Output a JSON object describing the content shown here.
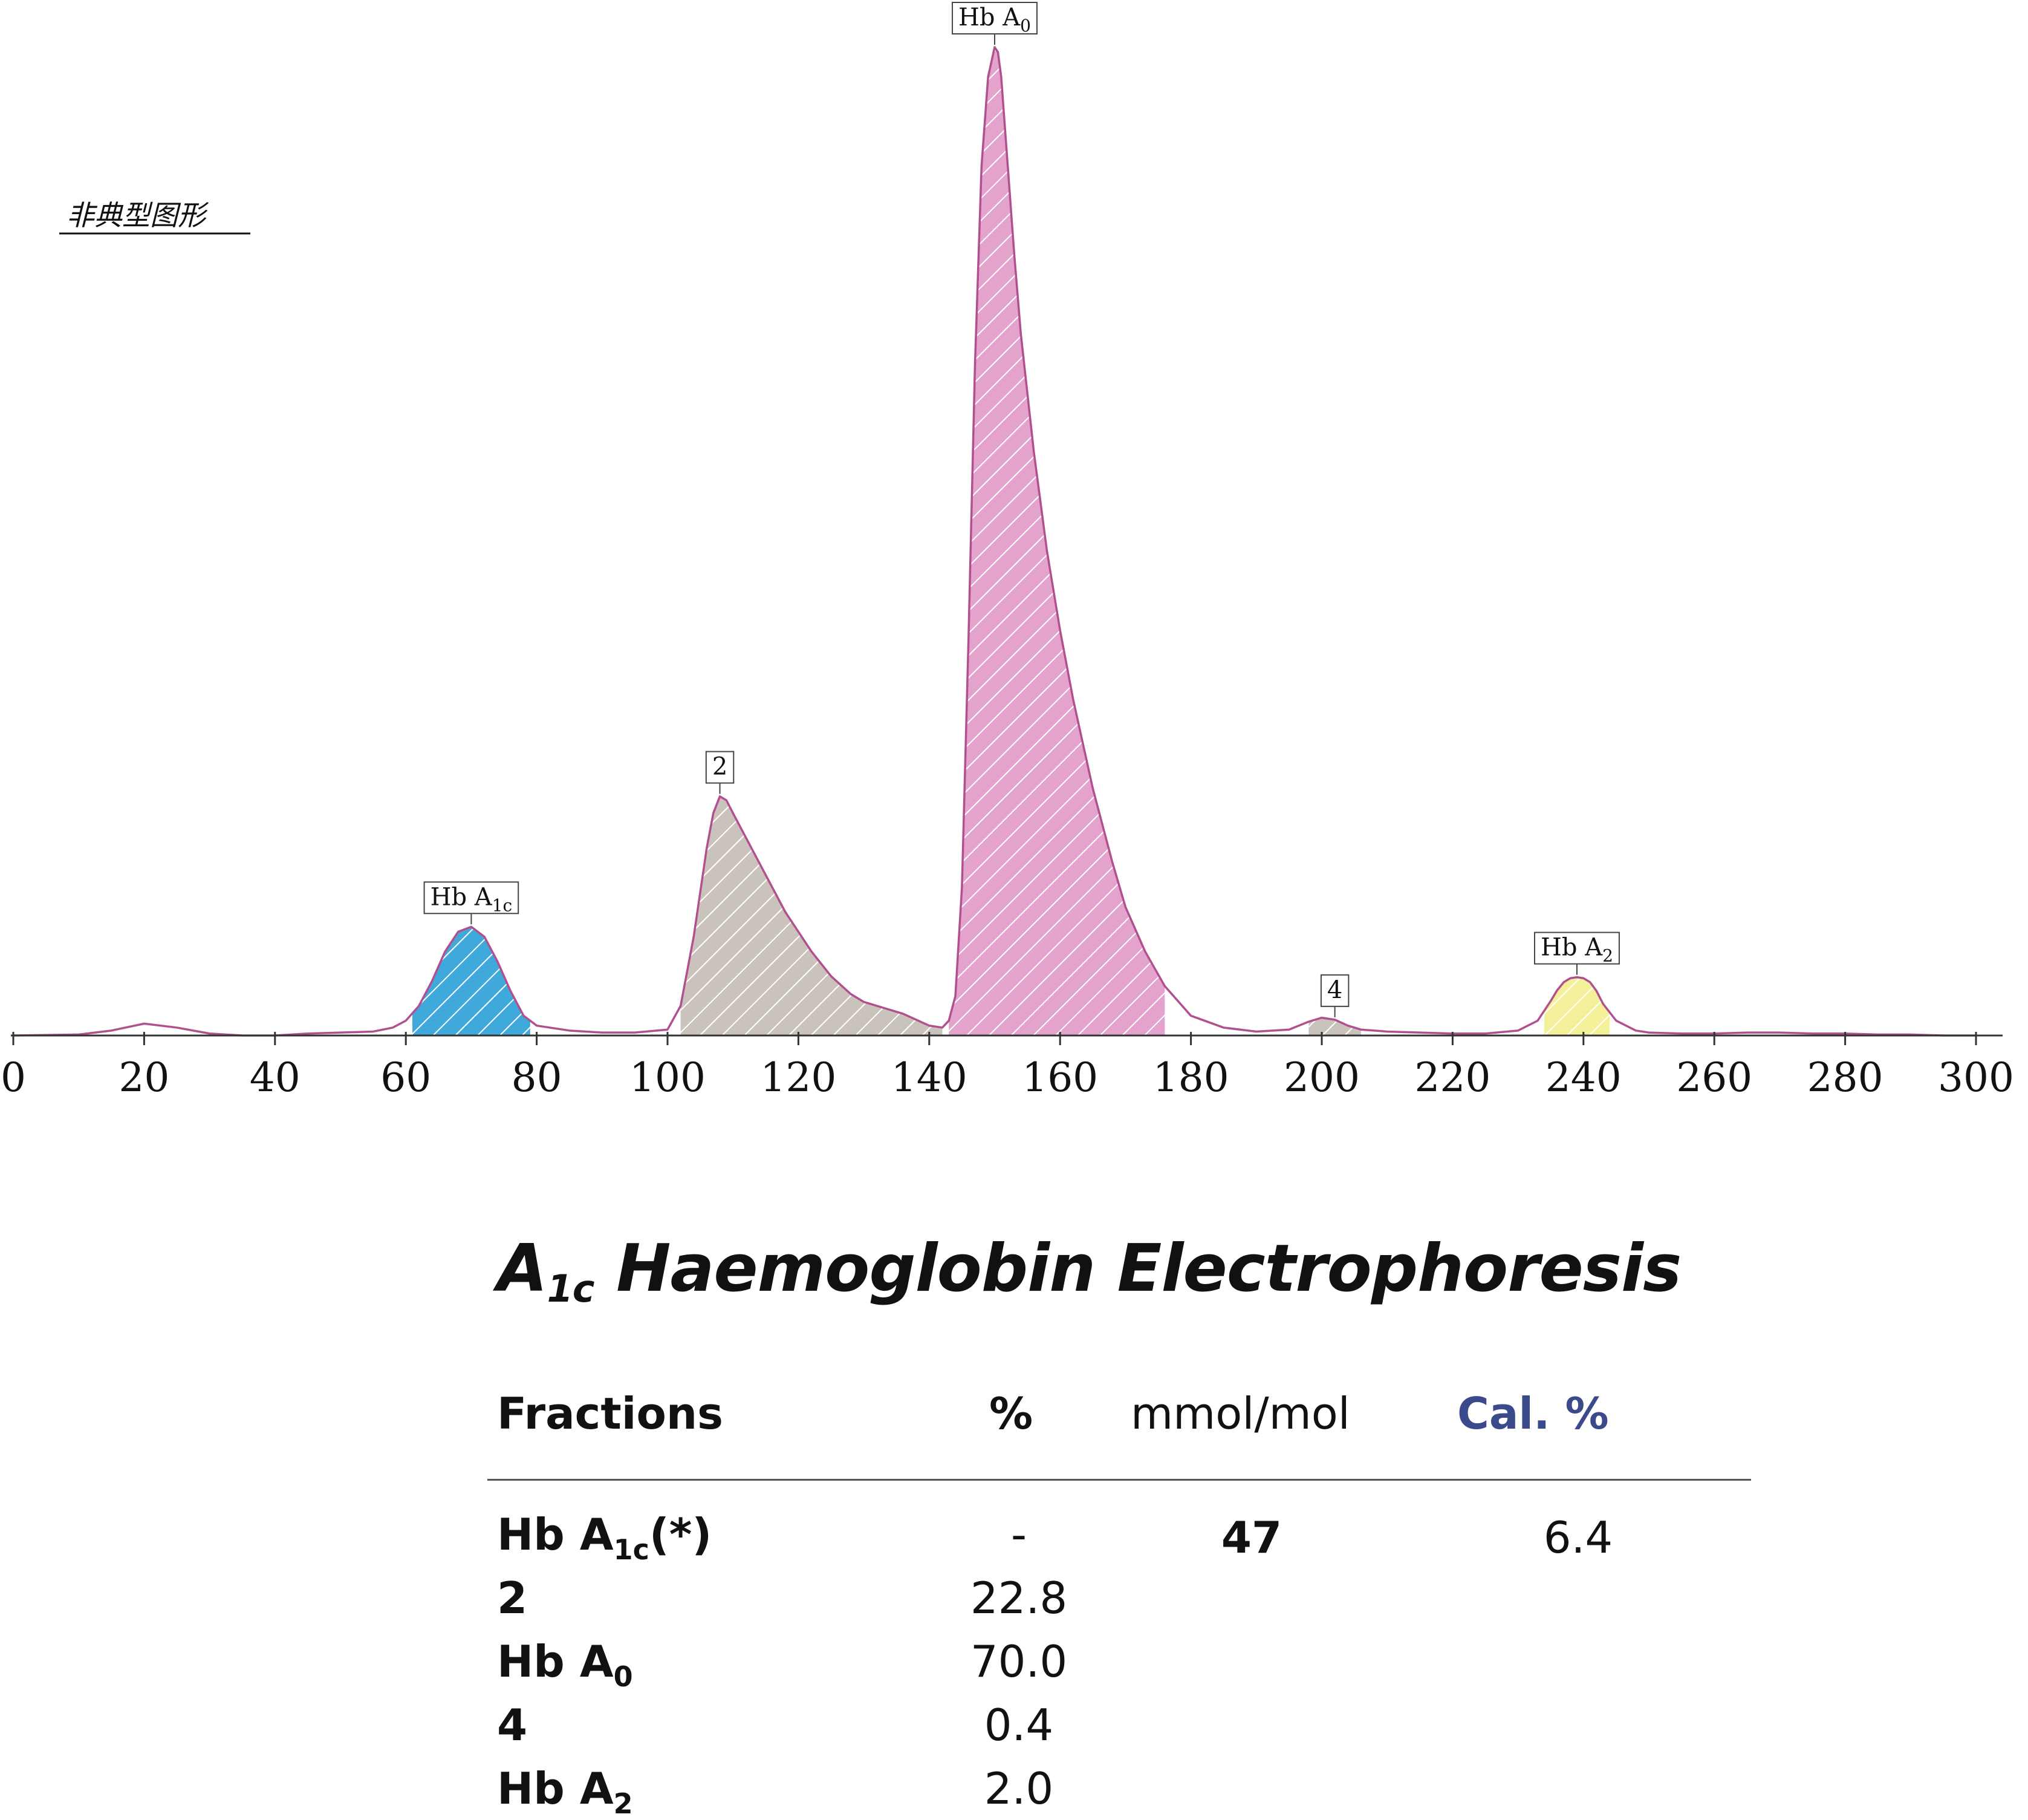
{
  "note": "非典型图形",
  "chart_data": {
    "type": "area",
    "x_ticks": [
      0,
      20,
      40,
      60,
      80,
      100,
      120,
      140,
      160,
      180,
      200,
      220,
      240,
      260,
      280,
      300
    ],
    "xlim": [
      0,
      300
    ],
    "grid": false,
    "curve": {
      "x": [
        0,
        10,
        15,
        20,
        25,
        30,
        35,
        40,
        45,
        50,
        55,
        58,
        60,
        62,
        64,
        66,
        68,
        70,
        72,
        74,
        76,
        78,
        80,
        85,
        90,
        95,
        100,
        102,
        104,
        106,
        107,
        108,
        109,
        110,
        112,
        114,
        116,
        118,
        120,
        122,
        125,
        128,
        130,
        133,
        136,
        140,
        142,
        143,
        144,
        145,
        146,
        147,
        148,
        149,
        150,
        150.5,
        151,
        152,
        153,
        154,
        156,
        158,
        160,
        162,
        165,
        168,
        170,
        173,
        176,
        180,
        185,
        190,
        195,
        198,
        200,
        202,
        204,
        206,
        210,
        215,
        220,
        225,
        230,
        233,
        235,
        236,
        237,
        238,
        239,
        240,
        241,
        242,
        243,
        245,
        248,
        250,
        255,
        260,
        265,
        270,
        275,
        280,
        285,
        290,
        295,
        300
      ],
      "y": [
        0,
        0.1,
        0.5,
        1.2,
        0.8,
        0.2,
        0,
        0,
        0.2,
        0.3,
        0.4,
        0.8,
        1.5,
        3,
        5.5,
        8.5,
        10.5,
        11,
        10,
        7.5,
        4.5,
        2,
        1,
        0.5,
        0.3,
        0.3,
        0.6,
        3,
        10,
        19,
        22.5,
        24.2,
        23.8,
        22.5,
        20,
        17.5,
        15,
        12.5,
        10.5,
        8.5,
        6,
        4.2,
        3.4,
        2.8,
        2.2,
        1,
        0.8,
        1.5,
        4,
        15,
        40,
        68,
        88,
        97,
        100,
        99.5,
        97,
        88,
        79,
        71,
        59,
        49,
        41,
        34,
        25,
        17.5,
        13,
        8.5,
        5,
        2,
        0.8,
        0.4,
        0.6,
        1.4,
        1.8,
        1.6,
        1,
        0.6,
        0.4,
        0.3,
        0.2,
        0.2,
        0.5,
        1.5,
        3.5,
        4.6,
        5.4,
        5.8,
        5.9,
        5.8,
        5.4,
        4.5,
        3.2,
        1.5,
        0.5,
        0.3,
        0.2,
        0.2,
        0.3,
        0.3,
        0.2,
        0.2,
        0.1,
        0.1,
        0,
        0
      ]
    },
    "fractions": [
      {
        "name": "Hb A1c",
        "main": "Hb A",
        "sub": "1c",
        "peak_x": 70,
        "range": [
          61,
          79
        ],
        "color": "#3fa9dc"
      },
      {
        "name": "2",
        "main": "2",
        "sub": "",
        "peak_x": 108,
        "range": [
          102,
          142
        ],
        "color": "#c9c3bb"
      },
      {
        "name": "Hb A0",
        "main": "Hb A",
        "sub": "0",
        "peak_x": 150,
        "range": [
          143,
          176
        ],
        "color": "#e3a3cc"
      },
      {
        "name": "4",
        "main": "4",
        "sub": "",
        "peak_x": 202,
        "range": [
          198,
          206
        ],
        "color": "#c9c3bb"
      },
      {
        "name": "Hb A2",
        "main": "Hb A",
        "sub": "2",
        "peak_x": 239,
        "range": [
          234,
          244
        ],
        "color": "#f5f09a"
      }
    ],
    "line_color": "#b2508f"
  },
  "report": {
    "title_main": "A",
    "title_sub": "1c",
    "title_rest": " Haemoglobin Electrophoresis",
    "headers": {
      "fractions": "Fractions",
      "pct": "%",
      "mmol": "mmol/mol",
      "cal": "Cal. %"
    },
    "rows": [
      {
        "name_main": "Hb A",
        "name_sub": "1c",
        "name_suffix": "(*)",
        "pct": "-",
        "mmol": "47",
        "cal": "6.4"
      },
      {
        "name_main": "2",
        "name_sub": "",
        "name_suffix": "",
        "pct": "22.8",
        "mmol": "",
        "cal": ""
      },
      {
        "name_main": "Hb A",
        "name_sub": "0",
        "name_suffix": "",
        "pct": "70.0",
        "mmol": "",
        "cal": ""
      },
      {
        "name_main": "4",
        "name_sub": "",
        "name_suffix": "",
        "pct": "0.4",
        "mmol": "",
        "cal": ""
      },
      {
        "name_main": "Hb A",
        "name_sub": "2",
        "name_suffix": "",
        "pct": "2.0",
        "mmol": "",
        "cal": ""
      }
    ]
  }
}
